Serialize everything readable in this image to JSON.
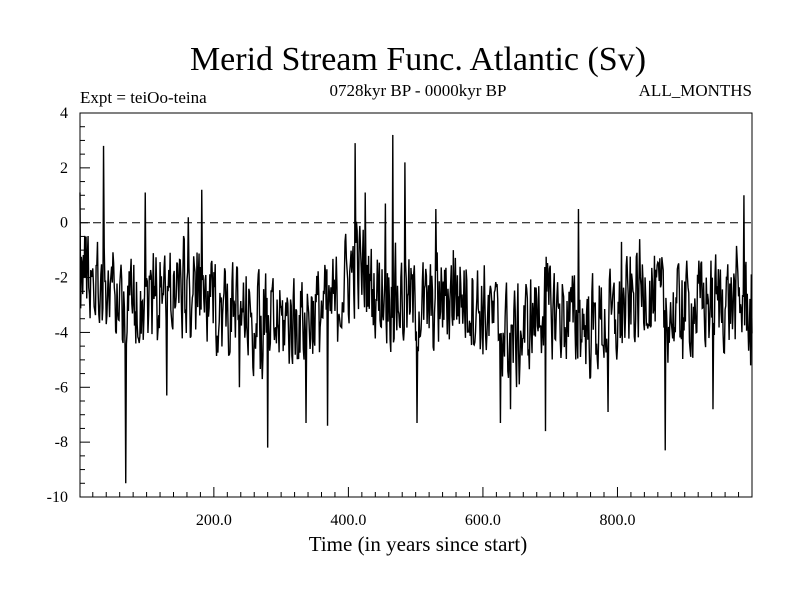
{
  "chart_data": {
    "type": "line",
    "title": "Merid Stream Func. Atlantic (Sv)",
    "subtitle": "0728kyr BP - 0000kyr BP",
    "left_label": "Expt = teiOo-teina",
    "right_label": "ALL_MONTHS",
    "xlabel": "Time (in years since start)",
    "ylabel": "",
    "xlim": [
      1,
      1000
    ],
    "ylim": [
      -10,
      4
    ],
    "x_ticks": [
      200,
      400,
      600,
      800
    ],
    "x_tick_labels": [
      "200.0",
      "400.0",
      "600.0",
      "800.0"
    ],
    "y_ticks": [
      4,
      2,
      0,
      -2,
      -4,
      -6,
      -8,
      -10
    ],
    "y_tick_labels": [
      "4",
      "2",
      "0",
      "-2",
      "-4",
      "-6",
      "-8",
      "-10"
    ],
    "reference_line": 0,
    "series": [
      {
        "name": "Merid Stream Func. Atlantic",
        "x_start": 1,
        "x_step": 1,
        "anchors": [
          [
            1,
            -1.5
          ],
          [
            20,
            -2
          ],
          [
            40,
            -2.3
          ],
          [
            70,
            -3
          ],
          [
            100,
            -2.8
          ],
          [
            140,
            -2.3
          ],
          [
            180,
            -2.8
          ],
          [
            230,
            -3.3
          ],
          [
            280,
            -3.8
          ],
          [
            330,
            -3.5
          ],
          [
            380,
            -3
          ],
          [
            410,
            -1.5
          ],
          [
            440,
            -2.5
          ],
          [
            480,
            -2.8
          ],
          [
            520,
            -3.2
          ],
          [
            560,
            -2.5
          ],
          [
            600,
            -3.2
          ],
          [
            650,
            -4.3
          ],
          [
            690,
            -3
          ],
          [
            730,
            -3.5
          ],
          [
            760,
            -3.8
          ],
          [
            800,
            -3.6
          ],
          [
            840,
            -2.3
          ],
          [
            880,
            -3.4
          ],
          [
            920,
            -3
          ],
          [
            960,
            -2.8
          ],
          [
            1000,
            -3
          ]
        ],
        "amplitude": 1.6,
        "peaks": [
          [
            1,
            1.1
          ],
          [
            36,
            2.8
          ],
          [
            69,
            -9.5
          ],
          [
            98,
            1.1
          ],
          [
            130,
            -6.3
          ],
          [
            162,
            0.2
          ],
          [
            182,
            1.2
          ],
          [
            238,
            -6
          ],
          [
            280,
            -8.2
          ],
          [
            337,
            -7.3
          ],
          [
            369,
            -7.4
          ],
          [
            410,
            2.9
          ],
          [
            425,
            1.1
          ],
          [
            455,
            0.7
          ],
          [
            466,
            3.2
          ],
          [
            484,
            2.2
          ],
          [
            502,
            -7.3
          ],
          [
            530,
            0.5
          ],
          [
            556,
            -1
          ],
          [
            610,
            -2.6
          ],
          [
            626,
            -7.3
          ],
          [
            641,
            -6.8
          ],
          [
            693,
            -7.6
          ],
          [
            742,
            0.5
          ],
          [
            786,
            -6.9
          ],
          [
            806,
            -0.7
          ],
          [
            842,
            -2.7
          ],
          [
            871,
            -8.3
          ],
          [
            896,
            -2.1
          ],
          [
            942,
            -6.8
          ],
          [
            988,
            1
          ],
          [
            998,
            -5.2
          ]
        ]
      }
    ]
  }
}
